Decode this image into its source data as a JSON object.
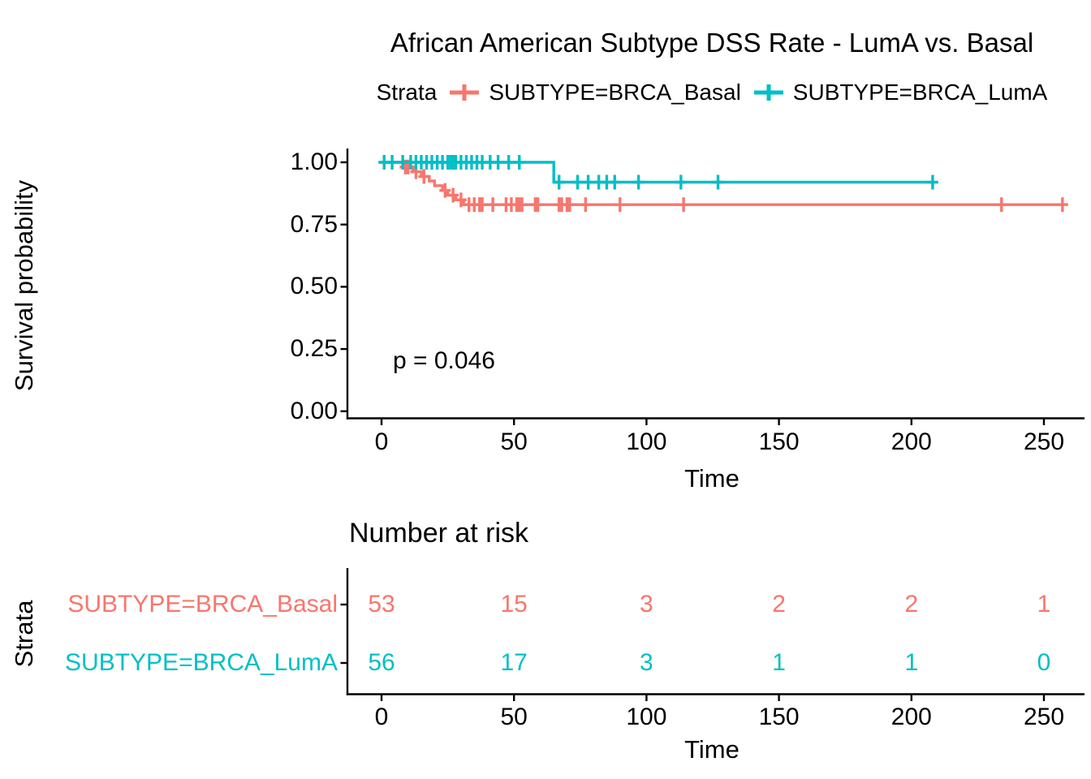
{
  "chart_data": {
    "type": "line",
    "subtype": "kaplan-meier-step",
    "title": "African American Subtype DSS Rate - LumA vs. Basal",
    "xlabel": "Time",
    "ylabel": "Survival probability",
    "legend_title": "Strata",
    "legend_position": "top",
    "pvalue_text": "p = 0.046",
    "grid": false,
    "xlim": [
      0,
      260
    ],
    "ylim": [
      0,
      1
    ],
    "x_ticks": [
      0,
      50,
      100,
      150,
      200,
      250
    ],
    "y_ticks": [
      {
        "value": 0.0,
        "label": "0.00"
      },
      {
        "value": 0.25,
        "label": "0.25"
      },
      {
        "value": 0.5,
        "label": "0.50"
      },
      {
        "value": 0.75,
        "label": "0.75"
      },
      {
        "value": 1.0,
        "label": "1.00"
      }
    ],
    "series": [
      {
        "name": "SUBTYPE=BRCA_Basal",
        "color": "#F8766D",
        "final_value": 0.83,
        "steps": [
          [
            0,
            1.0
          ],
          [
            8,
            1.0
          ],
          [
            8,
            0.981
          ],
          [
            12,
            0.981
          ],
          [
            12,
            0.962
          ],
          [
            15,
            0.962
          ],
          [
            15,
            0.943
          ],
          [
            18,
            0.943
          ],
          [
            18,
            0.925
          ],
          [
            20,
            0.925
          ],
          [
            20,
            0.906
          ],
          [
            23,
            0.906
          ],
          [
            23,
            0.887
          ],
          [
            25,
            0.887
          ],
          [
            25,
            0.868
          ],
          [
            28,
            0.868
          ],
          [
            28,
            0.849
          ],
          [
            31,
            0.849
          ],
          [
            31,
            0.83
          ],
          [
            257,
            0.83
          ]
        ],
        "censor_times": [
          1,
          9,
          10,
          13,
          16,
          24,
          27,
          30,
          33,
          35,
          37,
          38,
          42,
          47,
          49,
          51,
          52,
          53,
          58,
          59,
          67,
          68,
          70,
          71,
          77,
          90,
          114,
          234,
          257
        ]
      },
      {
        "name": "SUBTYPE=BRCA_LumA",
        "color": "#00BFC4",
        "final_value": 0.92,
        "steps": [
          [
            0,
            1.0
          ],
          [
            65,
            1.0
          ],
          [
            65,
            0.92
          ],
          [
            208,
            0.92
          ]
        ],
        "censor_times": [
          1,
          4,
          8,
          11,
          13,
          15,
          17,
          19,
          21,
          23,
          25,
          26,
          27,
          28,
          30,
          32,
          34,
          36,
          38,
          41,
          44,
          48,
          52,
          67,
          74,
          78,
          82,
          85,
          88,
          97,
          113,
          127,
          208
        ]
      }
    ],
    "risk_table": {
      "title": "Number at risk",
      "ylabel": "Strata",
      "xlabel": "Time",
      "times": [
        0,
        50,
        100,
        150,
        200,
        250
      ],
      "rows": [
        {
          "label": "SUBTYPE=BRCA_Basal",
          "color": "#F8766D",
          "counts": [
            53,
            15,
            3,
            2,
            2,
            1
          ]
        },
        {
          "label": "SUBTYPE=BRCA_LumA",
          "color": "#00BFC4",
          "counts": [
            56,
            17,
            3,
            1,
            1,
            0
          ]
        }
      ]
    }
  }
}
